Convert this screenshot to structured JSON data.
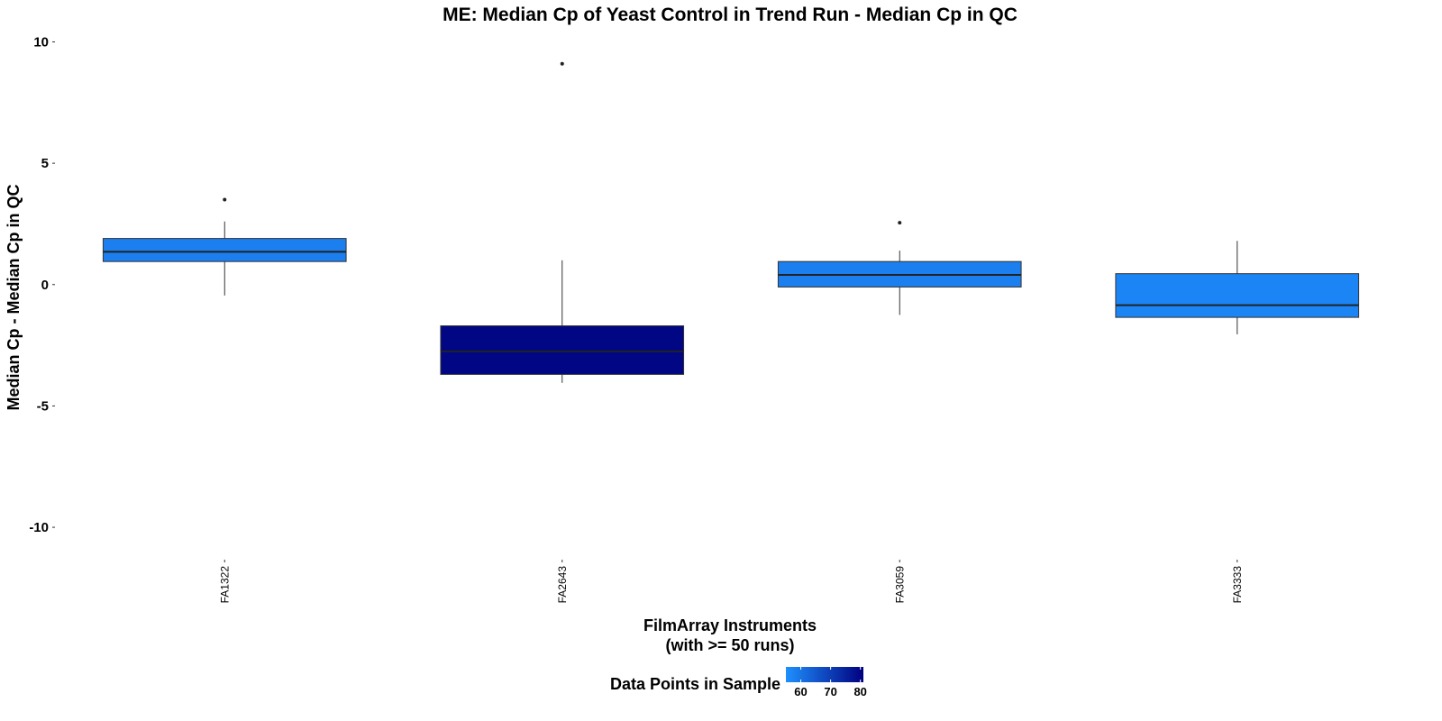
{
  "chart_data": {
    "type": "box",
    "title": "ME: Median Cp of Yeast Control in Trend Run - Median Cp in QC",
    "xlabel_line1": "FilmArray Instruments",
    "xlabel_line2": "(with >= 50 runs)",
    "ylabel": "Median Cp - Median Cp in QC",
    "ylim": [
      -11,
      10.5
    ],
    "yticks": [
      -10,
      -5,
      0,
      5,
      10
    ],
    "ytick_labels": [
      "-10",
      "-5",
      "0",
      "5",
      "10"
    ],
    "categories": [
      "FA1322",
      "FA2643",
      "FA3059",
      "FA3333"
    ],
    "boxes": [
      {
        "category": "FA1322",
        "whisker_low": -0.45,
        "q1": 0.95,
        "median": 1.35,
        "q3": 1.9,
        "whisker_high": 2.6,
        "outliers": [
          3.5
        ],
        "data_points": 58
      },
      {
        "category": "FA2643",
        "whisker_low": -4.05,
        "q1": -3.7,
        "median": -2.75,
        "q3": -1.7,
        "whisker_high": 1.0,
        "outliers": [
          9.1
        ],
        "data_points": 80
      },
      {
        "category": "FA3059",
        "whisker_low": -1.25,
        "q1": -0.1,
        "median": 0.4,
        "q3": 0.95,
        "whisker_high": 1.4,
        "outliers": [
          2.55
        ],
        "data_points": 58
      },
      {
        "category": "FA3333",
        "whisker_low": -2.05,
        "q1": -1.35,
        "median": -0.85,
        "q3": 0.45,
        "whisker_high": 1.8,
        "outliers": [],
        "data_points": 57
      }
    ],
    "legend": {
      "title": "Data Points in Sample",
      "position": "bottom",
      "range": [
        55,
        81
      ],
      "ticks": [
        60,
        70,
        80
      ],
      "tick_labels": [
        "60",
        "70",
        "80"
      ],
      "color_low": "#1e90ff",
      "color_high": "#000080"
    },
    "grid": false,
    "outline_color": "#333333"
  }
}
